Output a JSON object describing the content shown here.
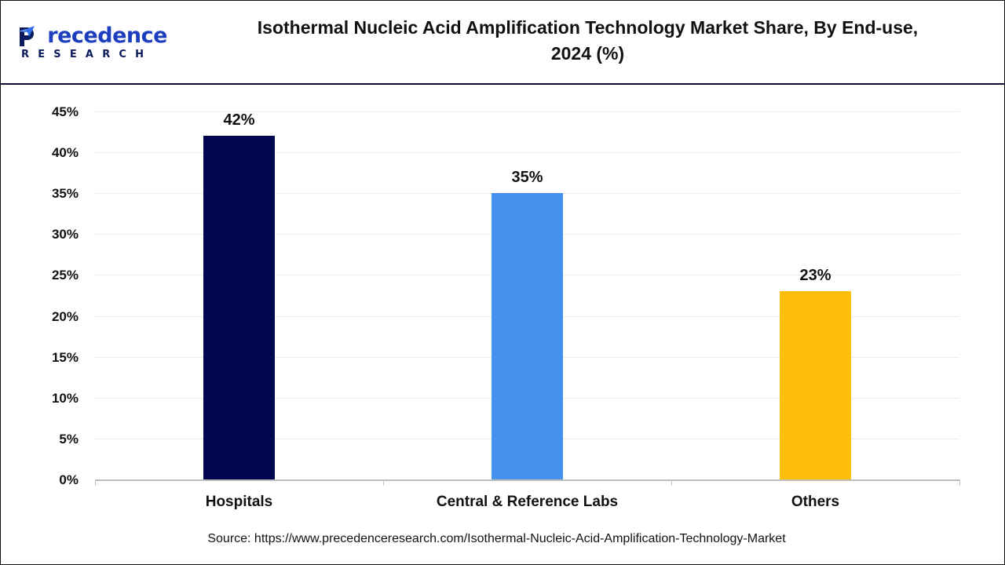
{
  "header": {
    "logo": {
      "word_first": "P",
      "word_rest": "recedence",
      "sub": "RESEARCH",
      "icon": "paper-plane-logo-icon"
    },
    "title_line1": "Isothermal Nucleic Acid Amplification Technology Market Share, By End-use,",
    "title_line2": "2024 (%)"
  },
  "colors": {
    "hospitals": "#010651",
    "central_reference_labs": "#4591ed",
    "others": "#fdbf0c",
    "axis": "#bfbfbf",
    "grid": "#ececec"
  },
  "source": "Source: https://www.precedenceresearch.com/Isothermal-Nucleic-Acid-Amplification-Technology-Market",
  "chart_data": {
    "type": "bar",
    "title": "Isothermal Nucleic Acid Amplification Technology Market Share, By End-use, 2024 (%)",
    "categories": [
      "Hospitals",
      "Central & Reference Labs",
      "Others"
    ],
    "values": [
      42,
      35,
      23
    ],
    "value_labels": [
      "42%",
      "35%",
      "23%"
    ],
    "colors": [
      "#010651",
      "#4591ed",
      "#fdbf0c"
    ],
    "xlabel": "",
    "ylabel": "",
    "ylim": [
      0,
      45
    ],
    "yticks": [
      "0%",
      "5%",
      "10%",
      "15%",
      "20%",
      "25%",
      "30%",
      "35%",
      "40%",
      "45%"
    ],
    "grid": true,
    "legend": null
  }
}
